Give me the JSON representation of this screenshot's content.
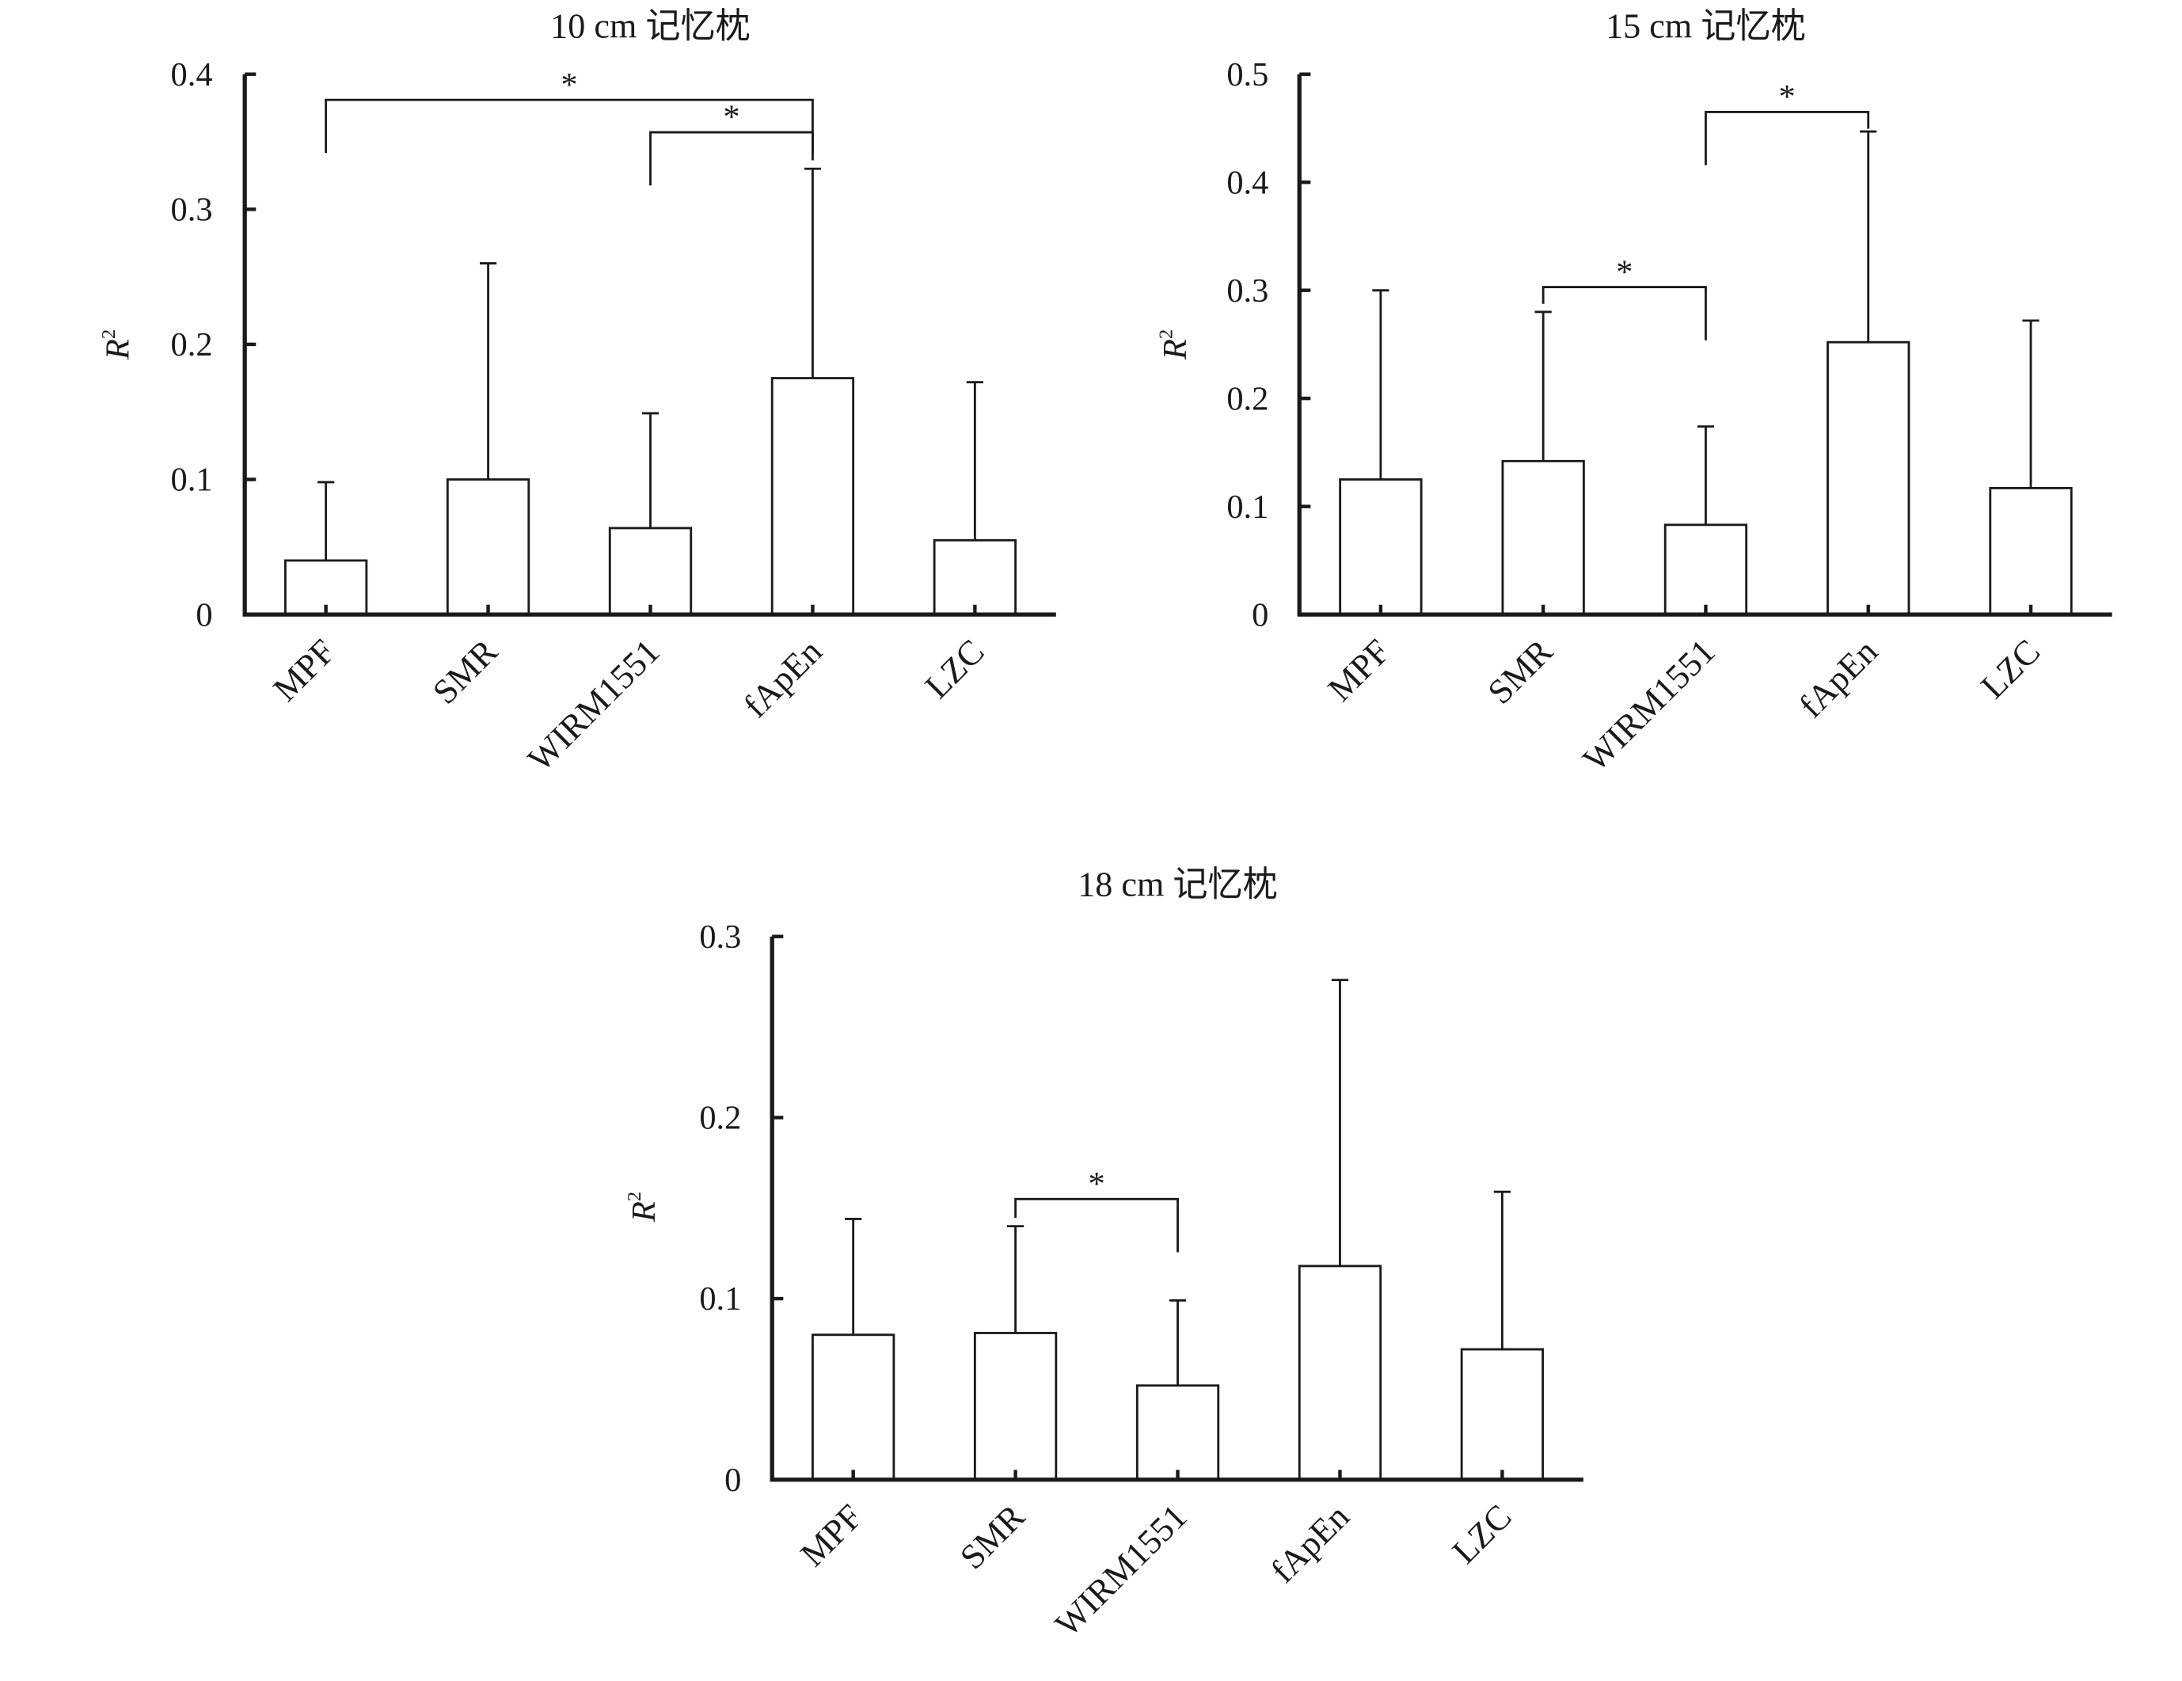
{
  "chart_data": [
    {
      "type": "bar",
      "title": "10 cm 记忆枕",
      "ylabel": "R",
      "ylabel_sup": "2",
      "categories": [
        "MPF",
        "SMR",
        "WIRM1551",
        "fApEn",
        "LZC"
      ],
      "values": [
        0.04,
        0.1,
        0.064,
        0.175,
        0.055
      ],
      "errors": [
        0.058,
        0.16,
        0.085,
        0.155,
        0.117
      ],
      "ylim": [
        0,
        0.4
      ],
      "yticks": [
        0,
        0.1,
        0.2,
        0.3,
        0.4
      ],
      "ytick_labels": [
        "0",
        "0.1",
        "0.2",
        "0.3",
        "0.4"
      ],
      "grid": false,
      "significance": [
        {
          "from": 0,
          "to": 3,
          "label": "*",
          "y": 0.381
        },
        {
          "from": 2,
          "to": 3,
          "label": "*",
          "y": 0.357
        }
      ]
    },
    {
      "type": "bar",
      "title": "15 cm 记忆枕",
      "ylabel": "R",
      "ylabel_sup": "2",
      "categories": [
        "MPF",
        "SMR",
        "WIRM1551",
        "fApEn",
        "LZC"
      ],
      "values": [
        0.125,
        0.142,
        0.083,
        0.252,
        0.117
      ],
      "errors": [
        0.175,
        0.138,
        0.091,
        0.195,
        0.155
      ],
      "ylim": [
        0,
        0.5
      ],
      "yticks": [
        0,
        0.1,
        0.2,
        0.3,
        0.4,
        0.5
      ],
      "ytick_labels": [
        "0",
        "0.1",
        "0.2",
        "0.3",
        "0.4",
        "0.5"
      ],
      "grid": false,
      "significance": [
        {
          "from": 1,
          "to": 2,
          "label": "*",
          "y": 0.303
        },
        {
          "from": 2,
          "to": 3,
          "label": "*",
          "y": 0.465
        }
      ]
    },
    {
      "type": "bar",
      "title": "18 cm 记忆枕",
      "ylabel": "R",
      "ylabel_sup": "2",
      "categories": [
        "MPF",
        "SMR",
        "WIRM1551",
        "fApEn",
        "LZC"
      ],
      "values": [
        0.08,
        0.081,
        0.052,
        0.118,
        0.072
      ],
      "errors": [
        0.064,
        0.059,
        0.047,
        0.158,
        0.087
      ],
      "ylim": [
        0,
        0.3
      ],
      "yticks": [
        0,
        0.1,
        0.2,
        0.3
      ],
      "ytick_labels": [
        "0",
        "0.1",
        "0.2",
        "0.3"
      ],
      "grid": false,
      "significance": [
        {
          "from": 1,
          "to": 2,
          "label": "*",
          "y": 0.155
        }
      ]
    }
  ]
}
